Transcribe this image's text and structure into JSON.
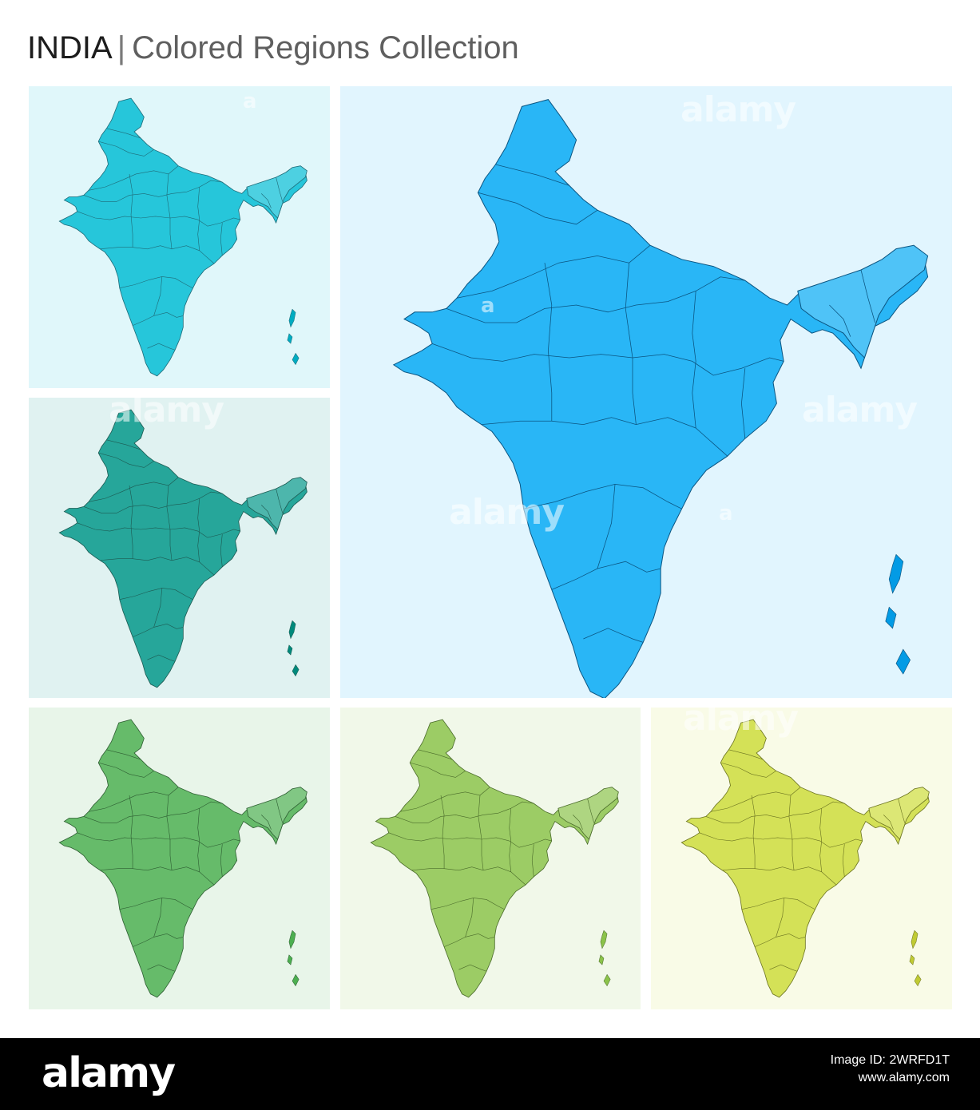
{
  "header": {
    "country": "INDIA",
    "separator": "|",
    "subtitle": "Colored Regions Collection"
  },
  "panels": [
    {
      "id": "teal-light",
      "bg": "#e0f7fa",
      "fill": "#26c6da",
      "fill_light": "#4dd0e1",
      "fill_dark": "#00acc1"
    },
    {
      "id": "teal-dark",
      "bg": "#e0f2f1",
      "fill": "#26a69a",
      "fill_light": "#4db6ac",
      "fill_dark": "#00897b"
    },
    {
      "id": "blue-large",
      "bg": "#e1f5fe",
      "fill": "#29b6f6",
      "fill_light": "#4fc3f7",
      "fill_dark": "#039be5"
    },
    {
      "id": "green",
      "bg": "#e8f5e9",
      "fill": "#66bb6a",
      "fill_light": "#81c784",
      "fill_dark": "#4caf50"
    },
    {
      "id": "light-green",
      "bg": "#f1f8e9",
      "fill": "#9ccc65",
      "fill_light": "#aed581",
      "fill_dark": "#8bc34a"
    },
    {
      "id": "lime",
      "bg": "#f9fbe7",
      "fill": "#d4e157",
      "fill_light": "#dce775",
      "fill_dark": "#c0ca33"
    }
  ],
  "watermark": {
    "text": "alamy",
    "letter": "a"
  },
  "footer": {
    "logo": "alamy",
    "image_id_label": "Image ID: 2WRFD1T",
    "site": "www.alamy.com"
  }
}
